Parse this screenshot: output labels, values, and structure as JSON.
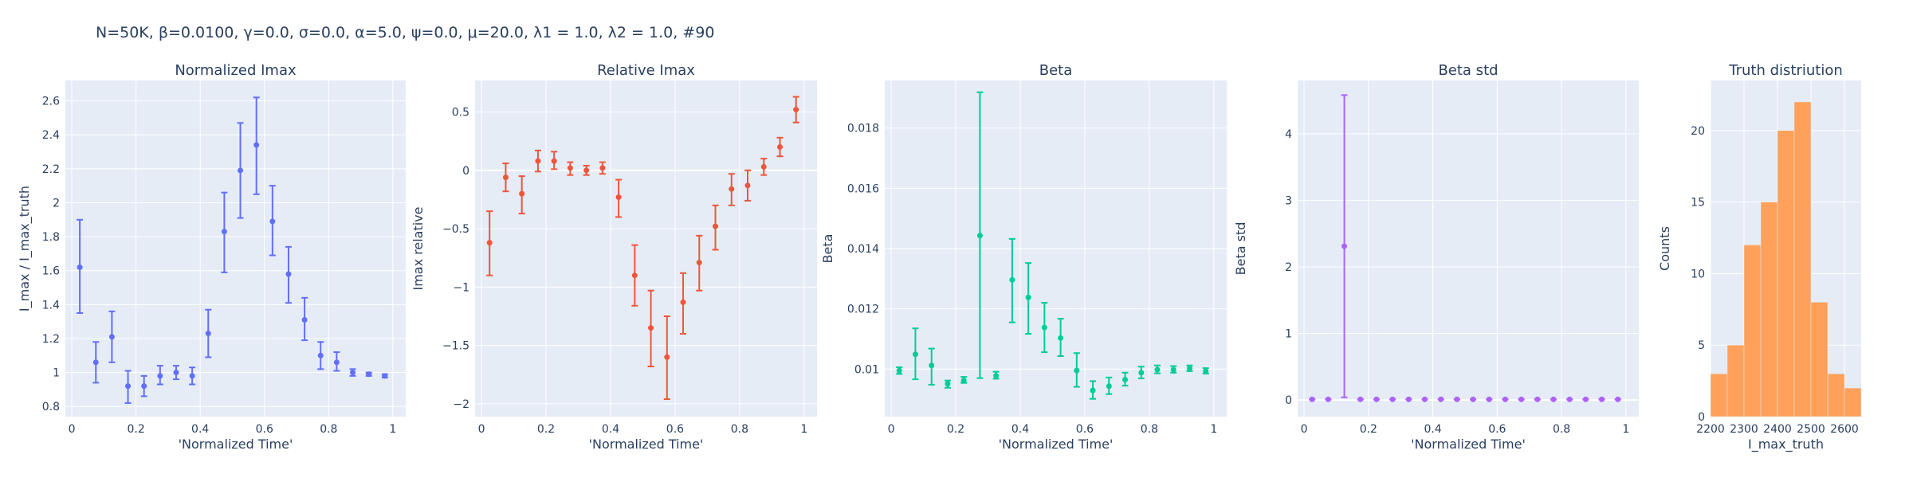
{
  "title": "N=50K, β=0.0100, γ=0.0, σ=0.0,  α=5.0, ψ=0.0, μ=20.0, λ1 = 1.0, λ2 = 1.0, #90",
  "chart_data": [
    {
      "type": "scatter",
      "title": "Normalized Imax",
      "xlabel": "'Normalized Time'",
      "ylabel": "I_max / I_max_truth",
      "color": "#636efa",
      "xlim": [
        -0.02,
        1.04
      ],
      "ylim": [
        0.74,
        2.72
      ],
      "xticks": [
        0,
        0.2,
        0.4,
        0.6,
        0.8,
        1
      ],
      "xtick_labels": [
        "0",
        "0.2",
        "0.4",
        "0.6",
        "0.8",
        "1"
      ],
      "yticks": [
        0.8,
        1,
        1.2,
        1.4,
        1.6,
        1.8,
        2,
        2.2,
        2.4,
        2.6
      ],
      "ytick_labels": [
        "0.8",
        "1",
        "1.2",
        "1.4",
        "1.6",
        "1.8",
        "2",
        "2.2",
        "2.4",
        "2.6"
      ],
      "x": [
        0.025,
        0.075,
        0.125,
        0.175,
        0.225,
        0.275,
        0.325,
        0.375,
        0.425,
        0.475,
        0.525,
        0.575,
        0.625,
        0.675,
        0.725,
        0.775,
        0.825,
        0.875,
        0.925,
        0.975
      ],
      "y": [
        1.62,
        1.06,
        1.21,
        0.92,
        0.92,
        0.98,
        1.0,
        0.98,
        1.23,
        1.83,
        2.19,
        2.34,
        1.89,
        1.58,
        1.31,
        1.1,
        1.06,
        1.0,
        0.99,
        0.98
      ],
      "err_low": [
        1.35,
        0.94,
        1.06,
        0.82,
        0.86,
        0.93,
        0.96,
        0.93,
        1.09,
        1.59,
        1.91,
        2.05,
        1.69,
        1.41,
        1.19,
        1.02,
        1.01,
        0.98,
        0.98,
        0.97
      ],
      "err_high": [
        1.9,
        1.18,
        1.36,
        1.01,
        0.98,
        1.04,
        1.04,
        1.03,
        1.37,
        2.06,
        2.47,
        2.62,
        2.1,
        1.74,
        1.44,
        1.18,
        1.12,
        1.02,
        1.0,
        0.99
      ]
    },
    {
      "type": "scatter",
      "title": "Relative Imax",
      "xlabel": "'Normalized Time'",
      "ylabel": "Imax relative",
      "color": "#ef553b",
      "xlim": [
        -0.02,
        1.04
      ],
      "ylim": [
        -2.11,
        0.77
      ],
      "xticks": [
        0,
        0.2,
        0.4,
        0.6,
        0.8,
        1
      ],
      "xtick_labels": [
        "0",
        "0.2",
        "0.4",
        "0.6",
        "0.8",
        "1"
      ],
      "yticks": [
        -2,
        -1.5,
        -1,
        -0.5,
        0,
        0.5
      ],
      "ytick_labels": [
        "−2",
        "−1.5",
        "−1",
        "−0.5",
        "0",
        "0.5"
      ],
      "x": [
        0.025,
        0.075,
        0.125,
        0.175,
        0.225,
        0.275,
        0.325,
        0.375,
        0.425,
        0.475,
        0.525,
        0.575,
        0.625,
        0.675,
        0.725,
        0.775,
        0.825,
        0.875,
        0.925,
        0.975
      ],
      "y": [
        -0.62,
        -0.06,
        -0.2,
        0.08,
        0.08,
        0.02,
        0.0,
        0.02,
        -0.23,
        -0.9,
        -1.35,
        -1.6,
        -1.13,
        -0.79,
        -0.48,
        -0.16,
        -0.13,
        0.03,
        0.2,
        0.52
      ],
      "err_low": [
        -0.9,
        -0.18,
        -0.37,
        -0.01,
        0.01,
        -0.04,
        -0.04,
        -0.03,
        -0.4,
        -1.16,
        -1.68,
        -1.96,
        -1.4,
        -1.03,
        -0.68,
        -0.3,
        -0.26,
        -0.04,
        0.12,
        0.41
      ],
      "err_high": [
        -0.35,
        0.06,
        -0.05,
        0.17,
        0.16,
        0.07,
        0.04,
        0.07,
        -0.08,
        -0.64,
        -1.03,
        -1.25,
        -0.88,
        -0.56,
        -0.3,
        -0.03,
        0.0,
        0.1,
        0.28,
        0.63
      ]
    },
    {
      "type": "scatter",
      "title": "Beta",
      "xlabel": "'Normalized Time'",
      "ylabel": "Beta",
      "color": "#00cc96",
      "xlim": [
        -0.02,
        1.04
      ],
      "ylim": [
        0.00842,
        0.01958
      ],
      "xticks": [
        0,
        0.2,
        0.4,
        0.6,
        0.8,
        1
      ],
      "xtick_labels": [
        "0",
        "0.2",
        "0.4",
        "0.6",
        "0.8",
        "1"
      ],
      "yticks": [
        0.01,
        0.012,
        0.014,
        0.016,
        0.018
      ],
      "ytick_labels": [
        "0.01",
        "0.012",
        "0.014",
        "0.016",
        "0.018"
      ],
      "x": [
        0.025,
        0.075,
        0.125,
        0.175,
        0.225,
        0.275,
        0.325,
        0.375,
        0.425,
        0.475,
        0.525,
        0.575,
        0.625,
        0.675,
        0.725,
        0.775,
        0.825,
        0.875,
        0.925,
        0.975
      ],
      "y": [
        0.00995,
        0.01049,
        0.01012,
        0.00951,
        0.00962,
        0.01443,
        0.00978,
        0.01296,
        0.01238,
        0.01138,
        0.01103,
        0.00995,
        0.00929,
        0.00943,
        0.00965,
        0.00988,
        0.00998,
        0.00998,
        0.01002,
        0.00993
      ],
      "err_low": [
        0.00984,
        0.00966,
        0.00948,
        0.00938,
        0.00954,
        0.0097,
        0.00968,
        0.01155,
        0.01117,
        0.01056,
        0.01043,
        0.00941,
        0.00901,
        0.00917,
        0.00945,
        0.00969,
        0.00986,
        0.00988,
        0.00993,
        0.00985
      ],
      "err_high": [
        0.01006,
        0.01135,
        0.01068,
        0.00962,
        0.00974,
        0.01919,
        0.00991,
        0.01432,
        0.01352,
        0.0122,
        0.01167,
        0.01053,
        0.0096,
        0.00972,
        0.00988,
        0.01008,
        0.01012,
        0.0101,
        0.01012,
        0.01003
      ]
    },
    {
      "type": "scatter",
      "title": "Beta std",
      "xlabel": "'Normalized Time'",
      "ylabel": "Beta std",
      "color": "#ab63fa",
      "xlim": [
        -0.02,
        1.04
      ],
      "ylim": [
        -0.25,
        4.8
      ],
      "xticks": [
        0,
        0.2,
        0.4,
        0.6,
        0.8,
        1
      ],
      "xtick_labels": [
        "0",
        "0.2",
        "0.4",
        "0.6",
        "0.8",
        "1"
      ],
      "yticks": [
        0,
        1,
        2,
        3,
        4
      ],
      "ytick_labels": [
        "0",
        "1",
        "2",
        "3",
        "4"
      ],
      "x": [
        0.025,
        0.075,
        0.125,
        0.175,
        0.225,
        0.275,
        0.325,
        0.375,
        0.425,
        0.475,
        0.525,
        0.575,
        0.625,
        0.675,
        0.725,
        0.775,
        0.825,
        0.875,
        0.925,
        0.975
      ],
      "y": [
        0.01,
        0.01,
        2.31,
        0.01,
        0.01,
        0.01,
        0.01,
        0.01,
        0.01,
        0.01,
        0.01,
        0.01,
        0.01,
        0.01,
        0.01,
        0.01,
        0.01,
        0.01,
        0.01,
        0.01
      ],
      "err_low": [
        0.01,
        0.01,
        0.04,
        0.01,
        0.01,
        0.01,
        0.01,
        0.01,
        0.01,
        0.01,
        0.01,
        0.01,
        0.01,
        0.01,
        0.01,
        0.01,
        0.01,
        0.01,
        0.01,
        0.01
      ],
      "err_high": [
        0.01,
        0.01,
        4.58,
        0.01,
        0.01,
        0.01,
        0.01,
        0.01,
        0.01,
        0.01,
        0.01,
        0.01,
        0.01,
        0.01,
        0.01,
        0.01,
        0.01,
        0.01,
        0.01,
        0.01
      ]
    },
    {
      "type": "bar",
      "title": "Truth distriution",
      "xlabel": "I_max_truth",
      "ylabel": "Counts",
      "color": "#ffa15a",
      "xlim": [
        2200,
        2650
      ],
      "ylim": [
        0,
        23.5
      ],
      "xticks": [
        2200,
        2300,
        2400,
        2500,
        2600
      ],
      "xtick_labels": [
        "2200",
        "2300",
        "2400",
        "2500",
        "2600"
      ],
      "yticks": [
        0,
        5,
        10,
        15,
        20
      ],
      "ytick_labels": [
        "0",
        "5",
        "10",
        "15",
        "20"
      ],
      "bin_start": [
        2200,
        2250,
        2300,
        2350,
        2400,
        2450,
        2500,
        2550,
        2600
      ],
      "bin_width": 50,
      "values": [
        3,
        5,
        12,
        15,
        20,
        22,
        8,
        3,
        2
      ]
    }
  ]
}
